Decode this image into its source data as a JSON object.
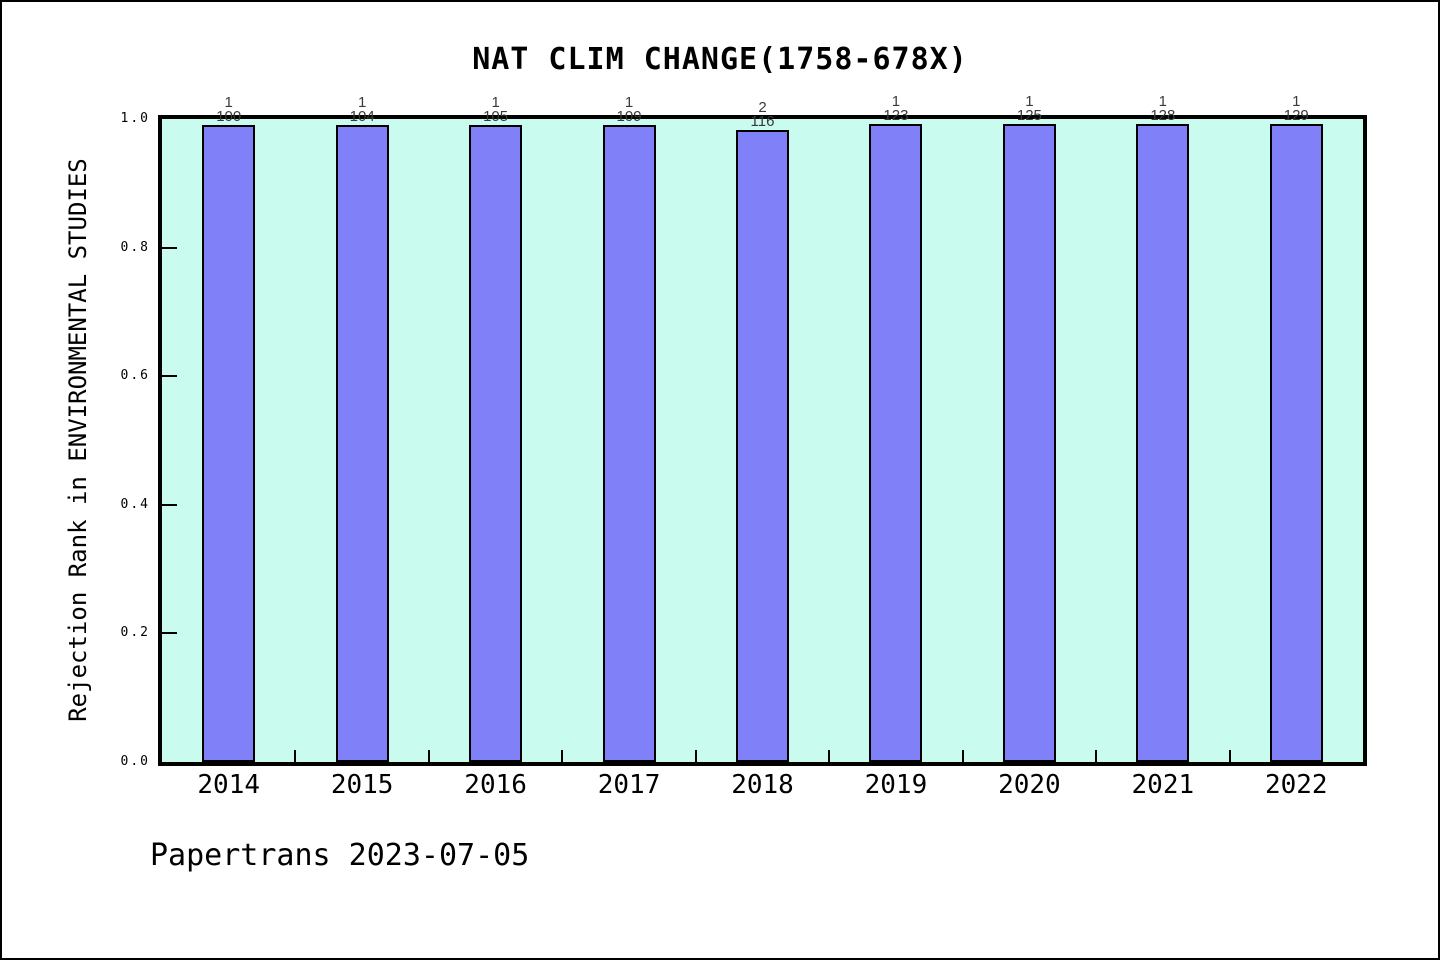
{
  "page": {
    "footer": "Papertrans 2023-07-05"
  },
  "chart_data": {
    "type": "bar",
    "title": "NAT CLIM CHANGE(1758-678X)",
    "ylabel": "Rejection Rank in ENVIRONMENTAL STUDIES",
    "xlabel": "",
    "categories": [
      "2014",
      "2015",
      "2016",
      "2017",
      "2018",
      "2019",
      "2020",
      "2021",
      "2022"
    ],
    "values": [
      0.99,
      0.9904,
      0.9905,
      0.9908,
      0.9828,
      0.9919,
      0.992,
      0.9922,
      0.9922
    ],
    "bar_labels": [
      {
        "numerator": "1",
        "denominator": "100"
      },
      {
        "numerator": "1",
        "denominator": "104"
      },
      {
        "numerator": "1",
        "denominator": "105"
      },
      {
        "numerator": "1",
        "denominator": "109"
      },
      {
        "numerator": "2",
        "denominator": "116"
      },
      {
        "numerator": "1",
        "denominator": "123"
      },
      {
        "numerator": "1",
        "denominator": "125"
      },
      {
        "numerator": "1",
        "denominator": "128"
      },
      {
        "numerator": "1",
        "denominator": "129"
      }
    ],
    "ylim": [
      0,
      1
    ],
    "yticks": [
      "0.0",
      "0.2",
      "0.4",
      "0.6",
      "0.8",
      "1.0"
    ],
    "grid": false,
    "legend": "none",
    "colors": {
      "bar_fill": "#8080f8",
      "bar_border": "#000000",
      "plot_background": "#c9fbee",
      "page_background": "#ffffff",
      "axis_color": "#000000",
      "bar_label_text": "#3a3a3a"
    }
  }
}
